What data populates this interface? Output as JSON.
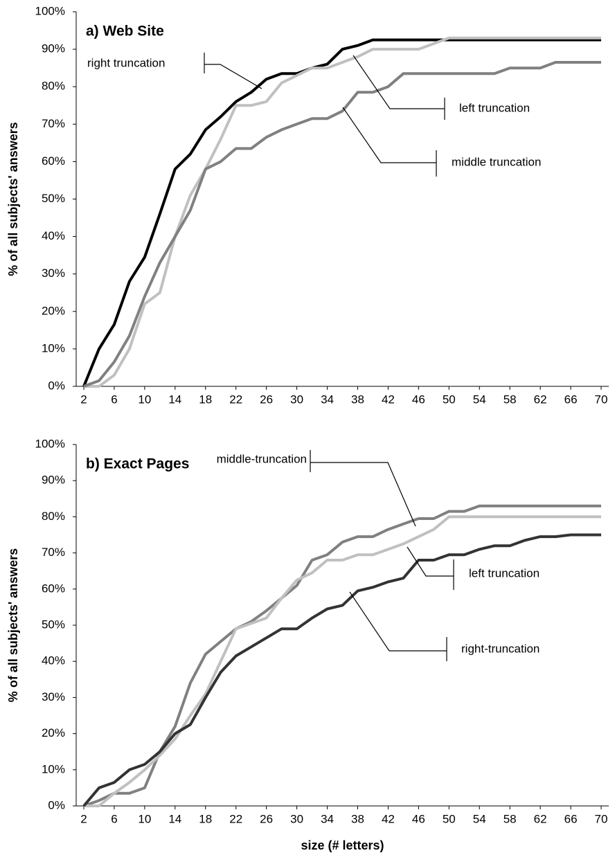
{
  "chart_data": [
    {
      "type": "line",
      "title": "a) Web Site",
      "ylabel": "% of all subjects' answers",
      "x": [
        2,
        4,
        6,
        8,
        10,
        12,
        14,
        16,
        18,
        20,
        22,
        24,
        26,
        28,
        30,
        32,
        34,
        36,
        38,
        40,
        42,
        44,
        46,
        48,
        50,
        52,
        54,
        56,
        58,
        60,
        62,
        64,
        66,
        68,
        70
      ],
      "xlim": [
        1,
        71
      ],
      "xticks": [
        2,
        6,
        10,
        14,
        18,
        22,
        26,
        30,
        34,
        38,
        42,
        46,
        50,
        54,
        58,
        62,
        66,
        70
      ],
      "ylim": [
        0,
        100
      ],
      "yticks": [
        {
          "value": 0,
          "label": "0%"
        },
        {
          "value": 10,
          "label": "10%"
        },
        {
          "value": 20,
          "label": "20%"
        },
        {
          "value": 30,
          "label": "30%"
        },
        {
          "value": 40,
          "label": "40%"
        },
        {
          "value": 50,
          "label": "50%"
        },
        {
          "value": 60,
          "label": "60%"
        },
        {
          "value": 70,
          "label": "70%"
        },
        {
          "value": 80,
          "label": "80%"
        },
        {
          "value": 90,
          "label": "90%"
        },
        {
          "value": 100,
          "label": "100%"
        }
      ],
      "series": [
        {
          "name": "right truncation",
          "color": "#000000",
          "values": [
            0,
            10,
            16.5,
            28,
            34.5,
            46,
            58,
            62,
            68.5,
            72,
            76,
            78.5,
            82,
            83.5,
            83.5,
            85,
            86,
            90,
            91,
            92.5,
            92.5,
            92.5,
            92.5,
            92.5,
            92.5,
            92.5,
            92.5,
            92.5,
            92.5,
            92.5,
            92.5,
            92.5,
            92.5,
            92.5,
            92.5
          ]
        },
        {
          "name": "left truncation",
          "color": "#c0c0c0",
          "values": [
            0,
            0,
            3,
            10,
            22,
            25,
            40,
            51,
            58,
            66,
            75,
            75,
            76,
            81,
            83,
            85,
            85,
            86.5,
            88,
            90,
            90,
            90,
            90,
            91.5,
            93,
            93,
            93,
            93,
            93,
            93,
            93,
            93,
            93,
            93,
            93
          ]
        },
        {
          "name": "middle truncation",
          "color": "#808080",
          "values": [
            0,
            1.5,
            6.5,
            13.5,
            24,
            33,
            40,
            47,
            58,
            60,
            63.5,
            63.5,
            66.5,
            68.5,
            70,
            71.5,
            71.5,
            73.5,
            78.5,
            78.5,
            80,
            83.5,
            83.5,
            83.5,
            83.5,
            83.5,
            83.5,
            83.5,
            85,
            85,
            85,
            86.5,
            86.5,
            86.5,
            86.5
          ]
        }
      ]
    },
    {
      "type": "line",
      "title": "b) Exact Pages",
      "ylabel": "% of all subjects' answers",
      "xlabel": "size (# letters)",
      "x": [
        2,
        4,
        6,
        8,
        10,
        12,
        14,
        16,
        18,
        20,
        22,
        24,
        26,
        28,
        30,
        32,
        34,
        36,
        38,
        40,
        42,
        44,
        46,
        48,
        50,
        52,
        54,
        56,
        58,
        60,
        62,
        64,
        66,
        68,
        70
      ],
      "xlim": [
        1,
        71
      ],
      "xticks": [
        2,
        6,
        10,
        14,
        18,
        22,
        26,
        30,
        34,
        38,
        42,
        46,
        50,
        54,
        58,
        62,
        66,
        70
      ],
      "ylim": [
        0,
        100
      ],
      "yticks": [
        {
          "value": 0,
          "label": "0%"
        },
        {
          "value": 10,
          "label": "10%"
        },
        {
          "value": 20,
          "label": "20%"
        },
        {
          "value": 30,
          "label": "30%"
        },
        {
          "value": 40,
          "label": "40%"
        },
        {
          "value": 50,
          "label": "50%"
        },
        {
          "value": 60,
          "label": "60%"
        },
        {
          "value": 70,
          "label": "70%"
        },
        {
          "value": 80,
          "label": "80%"
        },
        {
          "value": 90,
          "label": "90%"
        },
        {
          "value": 100,
          "label": "100%"
        }
      ],
      "series": [
        {
          "name": "middle-truncation",
          "color": "#808080",
          "values": [
            0,
            1.5,
            3.5,
            3.5,
            5,
            15,
            22,
            34,
            42,
            45.5,
            49,
            51,
            54,
            57.5,
            61,
            68,
            69.5,
            73,
            74.5,
            74.5,
            76.5,
            78,
            79.5,
            79.5,
            81.5,
            81.5,
            83,
            83,
            83,
            83,
            83,
            83,
            83,
            83,
            83
          ]
        },
        {
          "name": "left truncation",
          "color": "#c0c0c0",
          "values": [
            0,
            0,
            3.5,
            6.5,
            10,
            14,
            18.5,
            25,
            31,
            40,
            49,
            50.5,
            52,
            57.5,
            62.5,
            64.5,
            68,
            68,
            69.5,
            69.5,
            71,
            72.5,
            74.5,
            76.5,
            80,
            80,
            80,
            80,
            80,
            80,
            80,
            80,
            80,
            80,
            80
          ]
        },
        {
          "name": "right-truncation",
          "color": "#333333",
          "values": [
            0,
            5,
            6.5,
            10,
            11.5,
            15,
            20,
            22.5,
            30,
            37,
            41.5,
            44,
            46.5,
            49,
            49,
            52,
            54.5,
            55.5,
            59.5,
            60.5,
            62,
            63,
            68,
            68,
            69.5,
            69.5,
            71,
            72,
            72,
            73.5,
            74.5,
            74.5,
            75,
            75,
            75
          ]
        }
      ]
    }
  ]
}
